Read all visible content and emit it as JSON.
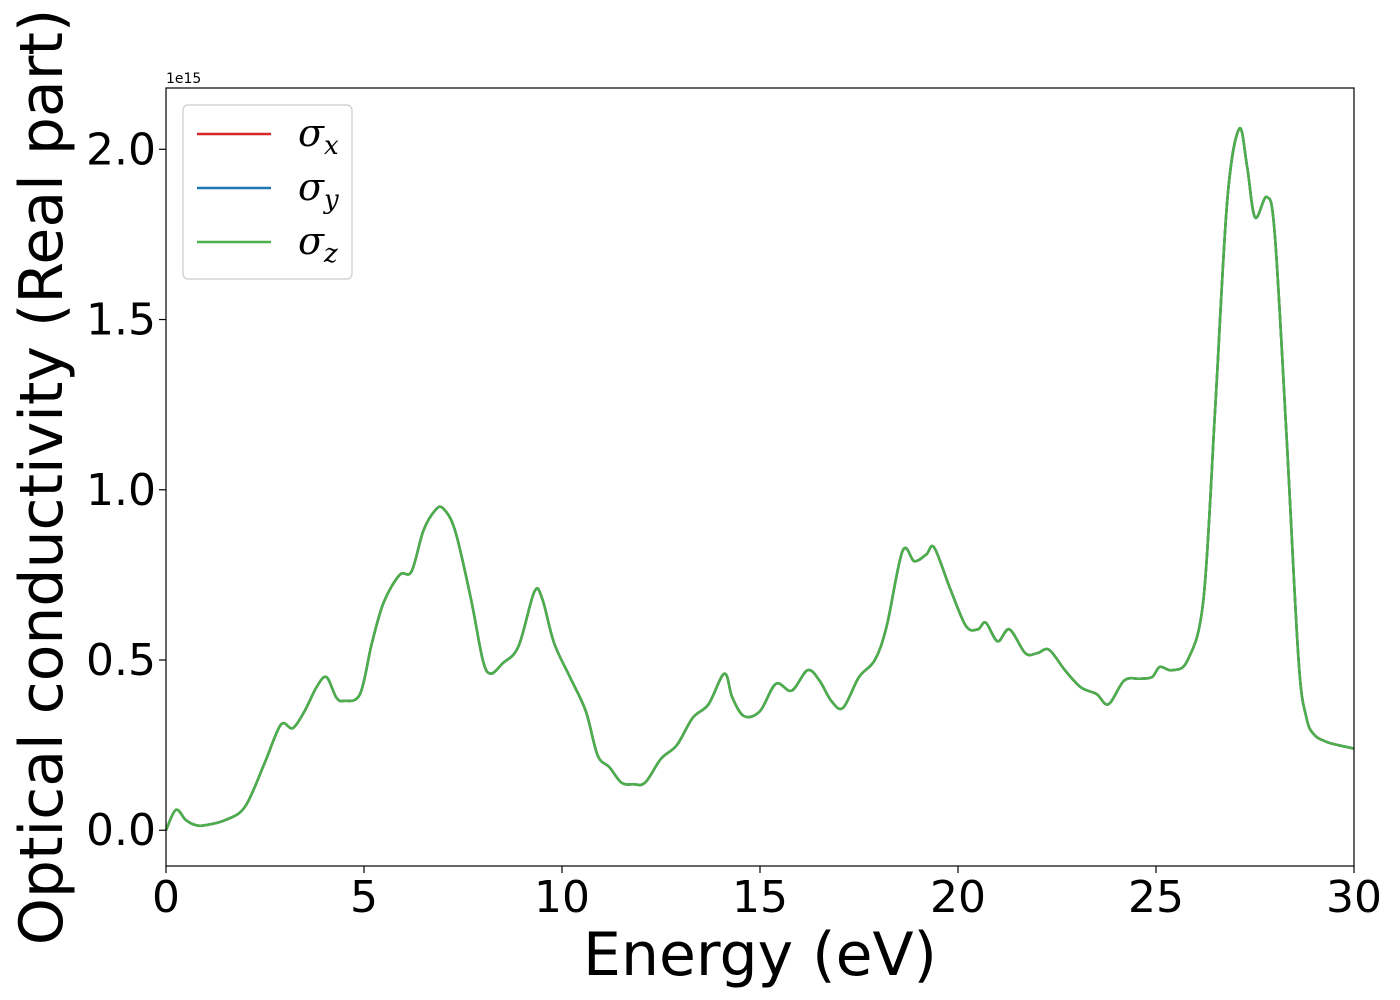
{
  "chart_data": {
    "type": "line",
    "title": "",
    "xlabel": "Energy (eV)",
    "ylabel": "Optical conductivity (Real part)",
    "y_offset_label": "1e15",
    "xlim": [
      0,
      30
    ],
    "ylim": [
      -0.105,
      2.18
    ],
    "xticks": [
      0,
      5,
      10,
      15,
      20,
      25,
      30
    ],
    "xtick_labels": [
      "0",
      "5",
      "10",
      "15",
      "20",
      "25",
      "30"
    ],
    "yticks": [
      0.0,
      0.5,
      1.0,
      1.5,
      2.0
    ],
    "ytick_labels": [
      "0.0",
      "0.5",
      "1.0",
      "1.5",
      "2.0"
    ],
    "grid": false,
    "legend_position": "top-left",
    "legend": [
      {
        "symbol": "σ",
        "sub": "x",
        "color": "#d62728"
      },
      {
        "symbol": "σ",
        "sub": "y",
        "color": "#1f77b4"
      },
      {
        "symbol": "σ",
        "sub": "z",
        "color": "#4daf4a"
      }
    ],
    "x": [
      0,
      0.25,
      0.5,
      0.75,
      1.0,
      1.5,
      2.0,
      2.5,
      2.9,
      3.2,
      3.5,
      3.8,
      4.05,
      4.3,
      4.5,
      4.9,
      5.2,
      5.5,
      5.9,
      6.2,
      6.5,
      6.8,
      7.0,
      7.3,
      7.7,
      8.0,
      8.2,
      8.5,
      8.9,
      9.3,
      9.5,
      9.8,
      10.2,
      10.6,
      10.9,
      11.2,
      11.5,
      11.8,
      12.1,
      12.5,
      12.9,
      13.3,
      13.7,
      14.1,
      14.3,
      14.6,
      15.0,
      15.4,
      15.8,
      16.2,
      16.5,
      16.8,
      17.1,
      17.5,
      17.9,
      18.2,
      18.6,
      18.9,
      19.2,
      19.4,
      19.8,
      20.2,
      20.5,
      20.7,
      21.0,
      21.3,
      21.7,
      22.0,
      22.3,
      22.7,
      23.1,
      23.5,
      23.8,
      24.2,
      24.6,
      24.9,
      25.1,
      25.4,
      25.8,
      26.2,
      26.5,
      26.8,
      27.1,
      27.3,
      27.5,
      27.8,
      28.0,
      28.3,
      28.6,
      28.8,
      29.0,
      29.3,
      29.6,
      30.0
    ],
    "series": [
      {
        "name": "",
        "color": "#d62728",
        "values": [
          0.0,
          0.06,
          0.03,
          0.015,
          0.015,
          0.03,
          0.07,
          0.2,
          0.31,
          0.3,
          0.35,
          0.42,
          0.45,
          0.39,
          0.38,
          0.4,
          0.55,
          0.67,
          0.75,
          0.76,
          0.88,
          0.94,
          0.945,
          0.88,
          0.68,
          0.5,
          0.46,
          0.49,
          0.54,
          0.7,
          0.68,
          0.55,
          0.45,
          0.35,
          0.22,
          0.185,
          0.14,
          0.135,
          0.14,
          0.21,
          0.25,
          0.33,
          0.37,
          0.46,
          0.39,
          0.335,
          0.35,
          0.43,
          0.41,
          0.47,
          0.44,
          0.38,
          0.36,
          0.45,
          0.5,
          0.6,
          0.82,
          0.79,
          0.81,
          0.83,
          0.71,
          0.6,
          0.59,
          0.61,
          0.555,
          0.59,
          0.52,
          0.52,
          0.53,
          0.47,
          0.42,
          0.4,
          0.37,
          0.44,
          0.445,
          0.45,
          0.48,
          0.47,
          0.5,
          0.68,
          1.25,
          1.85,
          2.06,
          1.95,
          1.8,
          1.86,
          1.75,
          1.15,
          0.5,
          0.33,
          0.28,
          0.26,
          0.25,
          0.24
        ]
      },
      {
        "name": "",
        "color": "#1f77b4",
        "values": [
          0.0,
          0.06,
          0.03,
          0.015,
          0.015,
          0.03,
          0.07,
          0.2,
          0.31,
          0.3,
          0.35,
          0.42,
          0.45,
          0.39,
          0.38,
          0.4,
          0.55,
          0.67,
          0.75,
          0.76,
          0.88,
          0.94,
          0.945,
          0.88,
          0.68,
          0.5,
          0.46,
          0.49,
          0.54,
          0.7,
          0.68,
          0.55,
          0.45,
          0.35,
          0.22,
          0.185,
          0.14,
          0.135,
          0.14,
          0.21,
          0.25,
          0.33,
          0.37,
          0.46,
          0.39,
          0.335,
          0.35,
          0.43,
          0.41,
          0.47,
          0.44,
          0.38,
          0.36,
          0.45,
          0.5,
          0.6,
          0.82,
          0.79,
          0.81,
          0.83,
          0.71,
          0.6,
          0.59,
          0.61,
          0.555,
          0.59,
          0.52,
          0.52,
          0.53,
          0.47,
          0.42,
          0.4,
          0.37,
          0.44,
          0.445,
          0.45,
          0.48,
          0.47,
          0.5,
          0.68,
          1.25,
          1.85,
          2.06,
          1.95,
          1.8,
          1.86,
          1.75,
          1.15,
          0.5,
          0.33,
          0.28,
          0.26,
          0.25,
          0.24
        ]
      },
      {
        "name": "",
        "color": "#4daf4a",
        "values": [
          0.0,
          0.06,
          0.03,
          0.015,
          0.015,
          0.03,
          0.07,
          0.2,
          0.31,
          0.3,
          0.35,
          0.42,
          0.45,
          0.39,
          0.38,
          0.4,
          0.55,
          0.67,
          0.75,
          0.76,
          0.88,
          0.94,
          0.945,
          0.88,
          0.68,
          0.5,
          0.46,
          0.49,
          0.54,
          0.7,
          0.68,
          0.55,
          0.45,
          0.35,
          0.22,
          0.185,
          0.14,
          0.135,
          0.14,
          0.21,
          0.25,
          0.33,
          0.37,
          0.46,
          0.39,
          0.335,
          0.35,
          0.43,
          0.41,
          0.47,
          0.44,
          0.38,
          0.36,
          0.45,
          0.5,
          0.6,
          0.82,
          0.79,
          0.81,
          0.83,
          0.71,
          0.6,
          0.59,
          0.61,
          0.555,
          0.59,
          0.52,
          0.52,
          0.53,
          0.47,
          0.42,
          0.4,
          0.37,
          0.44,
          0.445,
          0.45,
          0.48,
          0.47,
          0.5,
          0.68,
          1.25,
          1.85,
          2.06,
          1.95,
          1.8,
          1.86,
          1.75,
          1.15,
          0.5,
          0.33,
          0.28,
          0.26,
          0.25,
          0.24
        ]
      }
    ]
  }
}
